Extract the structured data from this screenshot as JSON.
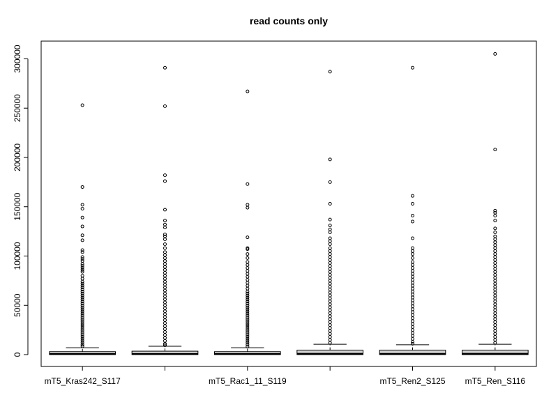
{
  "chart_data": {
    "type": "boxplot",
    "title": "read counts only",
    "xlabel": "",
    "ylabel": "",
    "ylim": [
      -12000,
      318000
    ],
    "y_ticks": [
      0,
      50000,
      100000,
      150000,
      200000,
      250000,
      300000
    ],
    "y_tick_labels": [
      "0",
      "50000",
      "100000",
      "150000",
      "200000",
      "250000",
      "300000"
    ],
    "categories": [
      "mT5_Kras242_S117",
      "",
      "mT5_Rac1_11_S119",
      "",
      "mT5_Ren2_S125",
      "mT5_Ren_S116"
    ],
    "grid": false,
    "legend": "none",
    "box_fill": "#d3d3d3",
    "boxes": [
      {
        "label": "mT5_Kras242_S117",
        "q1": 0,
        "median": 500,
        "q3": 3000,
        "whisker_low": 0,
        "whisker_high": 7000,
        "outliers": [
          253000,
          170000,
          152000,
          148000,
          139000,
          130000,
          121000,
          116000,
          106000,
          104000,
          99000,
          97000,
          95000,
          92000,
          90000,
          88000,
          86000,
          84000,
          80000,
          77000,
          74000,
          72000,
          70000,
          68000,
          66000,
          64000,
          62000,
          60000,
          58000,
          56000,
          54000,
          52000,
          50000,
          48000,
          46000,
          44000,
          42000,
          40000,
          38000,
          36000,
          34000,
          32000,
          30000,
          28000,
          26000,
          24000,
          22000,
          20000,
          18000,
          16000,
          14000,
          12000,
          10000,
          8500
        ]
      },
      {
        "label": "",
        "q1": 0,
        "median": 600,
        "q3": 3500,
        "whisker_low": 0,
        "whisker_high": 8500,
        "outliers": [
          291000,
          252000,
          182000,
          176000,
          147000,
          136000,
          132000,
          129000,
          122000,
          120000,
          117000,
          112000,
          108000,
          104000,
          101000,
          98000,
          95000,
          92000,
          89000,
          86000,
          83000,
          80000,
          77000,
          74000,
          71000,
          68000,
          65000,
          62000,
          59000,
          56000,
          53000,
          50000,
          47000,
          44000,
          41000,
          38000,
          35000,
          32000,
          29000,
          26000,
          23000,
          20000,
          17000,
          14000,
          11000,
          9500
        ]
      },
      {
        "label": "mT5_Rac1_11_S119",
        "q1": 0,
        "median": 500,
        "q3": 3000,
        "whisker_low": 0,
        "whisker_high": 7000,
        "outliers": [
          267000,
          173000,
          152000,
          149000,
          119000,
          108000,
          107000,
          102000,
          98000,
          94000,
          91000,
          88000,
          85000,
          82000,
          79000,
          76000,
          73000,
          70000,
          67000,
          64000,
          62000,
          60000,
          58000,
          56000,
          54000,
          52000,
          50000,
          48000,
          46000,
          44000,
          42000,
          40000,
          38000,
          36000,
          34000,
          32000,
          30000,
          28000,
          26000,
          24000,
          22000,
          20000,
          18000,
          16000,
          14000,
          12000,
          10000,
          8000
        ]
      },
      {
        "label": "",
        "q1": 0,
        "median": 800,
        "q3": 4500,
        "whisker_low": 0,
        "whisker_high": 10500,
        "outliers": [
          287000,
          198000,
          175000,
          153000,
          137000,
          131000,
          127000,
          124000,
          118000,
          115000,
          112000,
          108000,
          105000,
          102000,
          99000,
          96000,
          93000,
          90000,
          87000,
          84000,
          81000,
          78000,
          75000,
          72000,
          69000,
          66000,
          63000,
          60000,
          57000,
          54000,
          51000,
          48000,
          45000,
          42000,
          39000,
          36000,
          33000,
          30000,
          27000,
          24000,
          21000,
          18000,
          15000,
          12000
        ]
      },
      {
        "label": "mT5_Ren2_S125",
        "q1": 0,
        "median": 700,
        "q3": 4500,
        "whisker_low": 0,
        "whisker_high": 10000,
        "outliers": [
          291000,
          161000,
          153000,
          141000,
          135000,
          118000,
          108000,
          105000,
          102000,
          98000,
          94000,
          91000,
          88000,
          85000,
          82000,
          79000,
          76000,
          73000,
          70000,
          67000,
          64000,
          61000,
          58000,
          55000,
          52000,
          49000,
          46000,
          43000,
          40000,
          37000,
          34000,
          31000,
          28000,
          25000,
          22000,
          19000,
          16000,
          13000,
          11000
        ]
      },
      {
        "label": "mT5_Ren_S116",
        "q1": 0,
        "median": 800,
        "q3": 4500,
        "whisker_low": 0,
        "whisker_high": 10500,
        "outliers": [
          305000,
          208000,
          146000,
          144000,
          141000,
          136000,
          128000,
          124000,
          120000,
          117000,
          114000,
          111000,
          108000,
          105000,
          102000,
          99000,
          96000,
          93000,
          90000,
          87000,
          84000,
          81000,
          78000,
          75000,
          72000,
          69000,
          66000,
          63000,
          60000,
          57000,
          54000,
          51000,
          48000,
          45000,
          42000,
          39000,
          36000,
          33000,
          30000,
          27000,
          24000,
          21000,
          18000,
          15000,
          12000
        ]
      }
    ]
  }
}
